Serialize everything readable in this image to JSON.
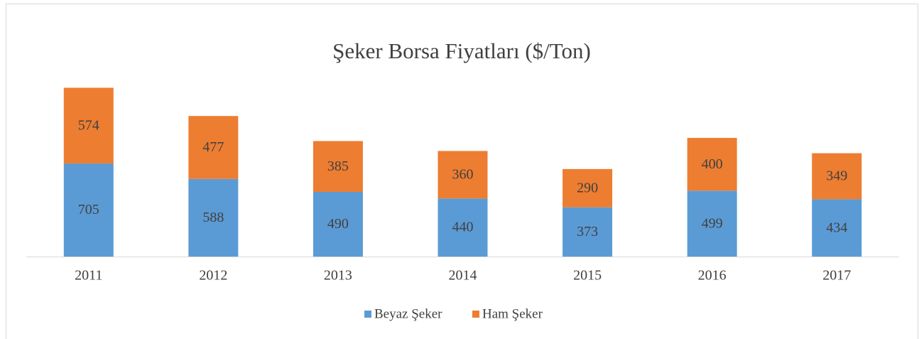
{
  "chart_data": {
    "type": "stacked_bar",
    "title": "Şeker Borsa Fiyatları ($/Ton)",
    "categories": [
      "2011",
      "2012",
      "2013",
      "2014",
      "2015",
      "2016",
      "2017"
    ],
    "series": [
      {
        "name": "Beyaz Şeker",
        "color": "#5b9bd5",
        "values": [
          705,
          588,
          490,
          440,
          373,
          499,
          434
        ]
      },
      {
        "name": "Ham Şeker",
        "color": "#ed7d31",
        "values": [
          574,
          477,
          385,
          360,
          290,
          400,
          349
        ]
      }
    ],
    "ylim": [
      0,
      1400
    ],
    "legend": "bottom"
  }
}
